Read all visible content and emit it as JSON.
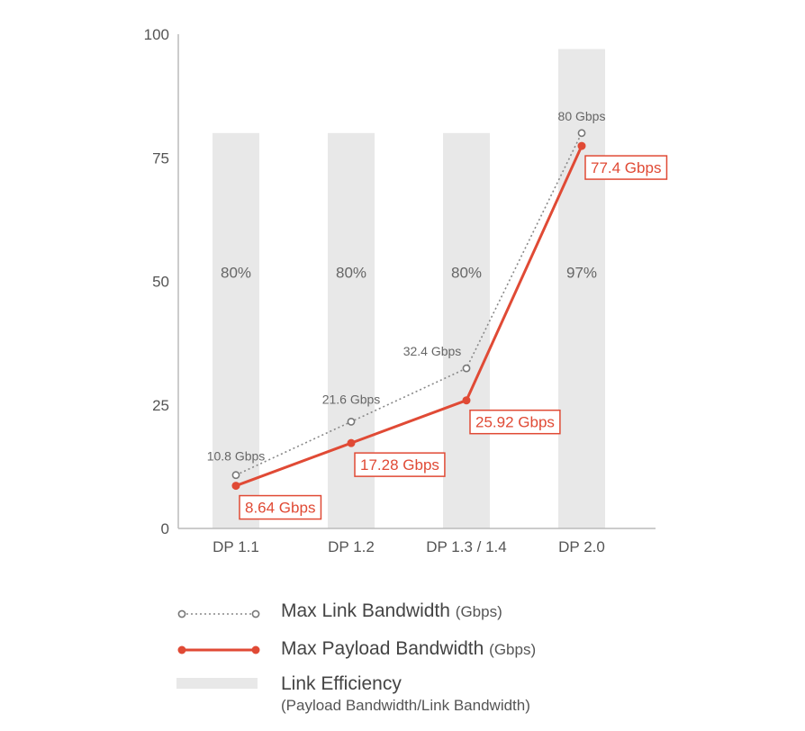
{
  "chart_data": {
    "type": "bar+line",
    "categories": [
      "DP 1.1",
      "DP 1.2",
      "DP 1.3 / 1.4",
      "DP 2.0"
    ],
    "highlight_category": "DP 2.0",
    "ylim": [
      0,
      100
    ],
    "yticks": [
      0,
      25,
      50,
      75,
      100
    ],
    "grid": false,
    "efficiency_bar_heights": [
      80,
      80,
      80,
      97
    ],
    "efficiency_labels": [
      "80%",
      "80%",
      "80%",
      "97%"
    ],
    "series": [
      {
        "name": "Max Link Bandwidth",
        "style": "dotted",
        "color": "#888888",
        "values": [
          10.8,
          21.6,
          32.4,
          80
        ],
        "labels": [
          "10.8 Gbps",
          "21.6 Gbps",
          "32.4 Gbps",
          "80 Gbps"
        ]
      },
      {
        "name": "Max Payload Bandwidth",
        "style": "solid",
        "color": "#e04a35",
        "values": [
          8.64,
          17.28,
          25.92,
          77.4
        ],
        "labels": [
          "8.64 Gbps",
          "17.28 Gbps",
          "25.92 Gbps",
          "77.4 Gbps"
        ]
      }
    ],
    "legend": {
      "placement": "bottom",
      "entries": [
        {
          "name": "Max Link Bandwidth",
          "unit": "(Gbps)"
        },
        {
          "name": "Max Payload Bandwidth",
          "unit": "(Gbps)"
        },
        {
          "name": "Link Efficiency",
          "sub": "(Payload Bandwidth/Link Bandwidth)"
        }
      ]
    },
    "colors": {
      "accent": "#e04a35",
      "bar": "#e8e8e8",
      "link": "#888888",
      "axis": "#bbbbbb"
    }
  }
}
